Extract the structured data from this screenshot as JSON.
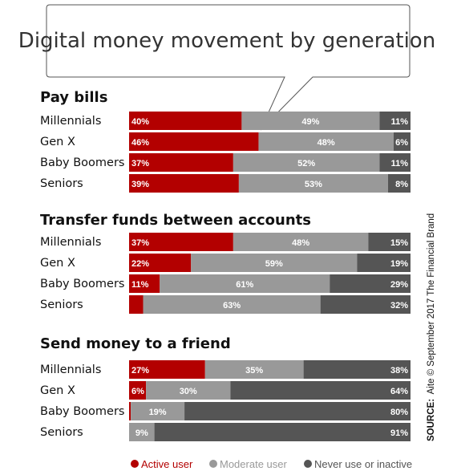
{
  "chart_data": {
    "type": "bar",
    "stacked": true,
    "orientation": "horizontal",
    "title": "Digital money movement by generation",
    "series": [
      {
        "name": "Active user",
        "color": "#b30000"
      },
      {
        "name": "Moderate user",
        "color": "#999999"
      },
      {
        "name": "Never use or inactive",
        "color": "#555555"
      }
    ],
    "panels": [
      {
        "title": "Pay bills",
        "categories": [
          "Millennials",
          "Gen X",
          "Baby Boomers",
          "Seniors"
        ],
        "values": [
          [
            40,
            49,
            11
          ],
          [
            46,
            48,
            6
          ],
          [
            37,
            52,
            11
          ],
          [
            39,
            53,
            8
          ]
        ],
        "labels": [
          [
            "40%",
            "49%",
            "11%"
          ],
          [
            "46%",
            "48%",
            "6%"
          ],
          [
            "37%",
            "52%",
            "11%"
          ],
          [
            "39%",
            "53%",
            "8%"
          ]
        ]
      },
      {
        "title": "Transfer funds between accounts",
        "categories": [
          "Millennials",
          "Gen X",
          "Baby Boomers",
          "Seniors"
        ],
        "values": [
          [
            37,
            48,
            15
          ],
          [
            22,
            59,
            19
          ],
          [
            11,
            61,
            29
          ],
          [
            5,
            63,
            32
          ]
        ],
        "labels": [
          [
            "37%",
            "48%",
            "15%"
          ],
          [
            "22%",
            "59%",
            "19%"
          ],
          [
            "11%",
            "61%",
            "29%"
          ],
          [
            "",
            "63%",
            "32%"
          ]
        ]
      },
      {
        "title": "Send money to a friend",
        "categories": [
          "Millennials",
          "Gen X",
          "Baby Boomers",
          "Seniors"
        ],
        "values": [
          [
            27,
            35,
            38
          ],
          [
            6,
            30,
            64
          ],
          [
            0.6,
            19,
            80
          ],
          [
            0,
            9,
            91
          ]
        ],
        "labels": [
          [
            "27%",
            "35%",
            "38%"
          ],
          [
            "6%",
            "30%",
            "64%"
          ],
          [
            "",
            "19%",
            "80%"
          ],
          [
            "",
            "9%",
            "91%"
          ]
        ]
      }
    ],
    "xlim": [
      0,
      100
    ],
    "legend_position": "bottom"
  },
  "source": {
    "label": "SOURCE:",
    "text": "Aite © September 2017 The Financial Brand"
  }
}
